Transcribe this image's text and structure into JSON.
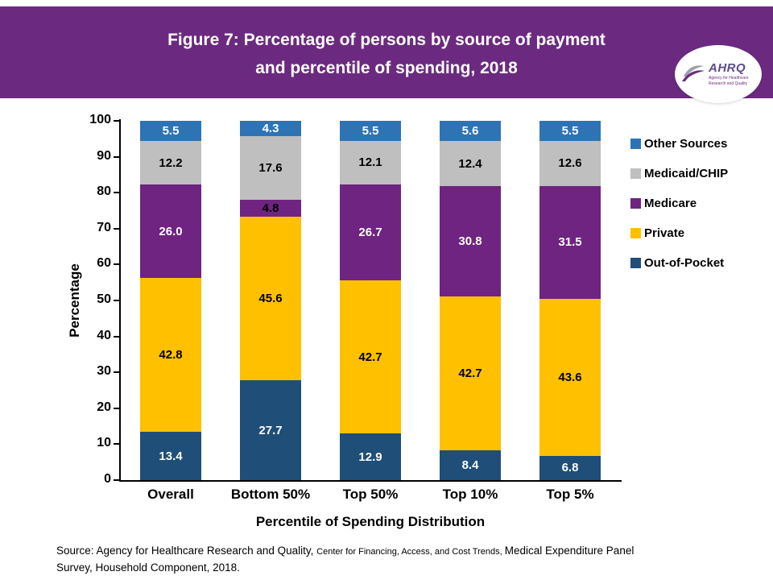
{
  "header": {
    "title_line1": "Figure 7: Percentage of persons by source of payment",
    "title_line2": "and percentile of spending, 2018",
    "background_color": "#6B2A7F",
    "logo": {
      "name": "AHRQ",
      "subtext": "Agency for Healthcare Research and Quality"
    }
  },
  "chart_data": {
    "type": "bar",
    "stacked": true,
    "title": "Figure 7: Percentage of persons by source of payment and percentile of spending, 2018",
    "categories": [
      "Overall",
      "Bottom 50%",
      "Top 50%",
      "Top 10%",
      "Top 5%"
    ],
    "series": [
      {
        "name": "Out-of-Pocket",
        "color": "#1F4E79",
        "label_color": "#FFFFFF",
        "values": [
          13.4,
          27.7,
          12.9,
          8.4,
          6.8
        ]
      },
      {
        "name": "Private",
        "color": "#FFC000",
        "label_color": "#000000",
        "values": [
          42.8,
          45.6,
          42.7,
          42.7,
          43.6
        ]
      },
      {
        "name": "Medicare",
        "color": "#6E2480",
        "label_color": "#FFFFFF",
        "label_colors_override": [
          null,
          "#000000",
          null,
          null,
          null
        ],
        "values": [
          26.0,
          4.8,
          26.7,
          30.8,
          31.5
        ]
      },
      {
        "name": "Medicaid/CHIP",
        "color": "#BFBFBF",
        "label_color": "#000000",
        "values": [
          12.2,
          17.6,
          12.1,
          12.4,
          12.6
        ]
      },
      {
        "name": "Other Sources",
        "color": "#2E74B5",
        "label_color": "#FFFFFF",
        "values": [
          5.5,
          4.3,
          5.5,
          5.6,
          5.5
        ]
      }
    ],
    "xlabel": "Percentile of Spending Distribution",
    "ylabel": "Percentage",
    "ylim": [
      0,
      100
    ],
    "yticks": [
      0,
      10,
      20,
      30,
      40,
      50,
      60,
      70,
      80,
      90,
      100
    ],
    "legend_position": "right",
    "legend_order_top_to_bottom": [
      "Other Sources",
      "Medicaid/CHIP",
      "Medicare",
      "Private",
      "Out-of-Pocket"
    ],
    "gridlines": false
  },
  "footer": {
    "part1_normal": "Source: Agency for Healthcare Research and Quality, ",
    "part2_small": "Center for Financing, Access, and Cost Trends, ",
    "part3_normal": "Medical Expenditure Panel",
    "line2": "Survey, Household Component, 2018."
  }
}
